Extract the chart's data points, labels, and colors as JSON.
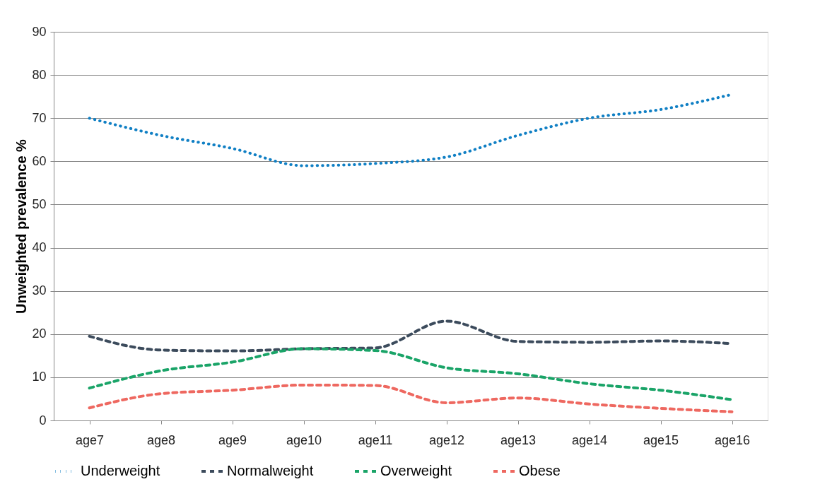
{
  "chart_data": {
    "type": "line",
    "ylabel": "Unweighted prevalence %",
    "categories": [
      "age7",
      "age8",
      "age9",
      "age10",
      "age11",
      "age12",
      "age13",
      "age14",
      "age15",
      "age16"
    ],
    "ylim": [
      0,
      90
    ],
    "yticks": [
      0,
      10,
      20,
      30,
      40,
      50,
      60,
      70,
      80,
      90
    ],
    "grid": "y",
    "legend": "bottom",
    "marker": "none",
    "series": [
      {
        "name": "Underweight",
        "color": "#0f7fc4",
        "line_style": "dotted",
        "values": [
          70,
          66,
          63,
          59,
          59.5,
          61,
          66,
          70,
          72,
          75.5
        ]
      },
      {
        "name": "Normalweight",
        "color": "#3c4b5c",
        "line_style": "dashed",
        "values": [
          19.5,
          16.3,
          16.1,
          16.6,
          16.8,
          23,
          18.3,
          18.1,
          18.4,
          17.8
        ]
      },
      {
        "name": "Overweight",
        "color": "#1aa468",
        "line_style": "dashed",
        "values": [
          7.5,
          11.5,
          13.5,
          16.6,
          16.2,
          12.2,
          10.8,
          8.5,
          7,
          4.8
        ]
      },
      {
        "name": "Obese",
        "color": "#ee6860",
        "line_style": "dashed",
        "values": [
          2.9,
          6.2,
          7,
          8.2,
          8.1,
          4.1,
          5.2,
          3.8,
          2.8,
          2.0
        ]
      }
    ]
  }
}
